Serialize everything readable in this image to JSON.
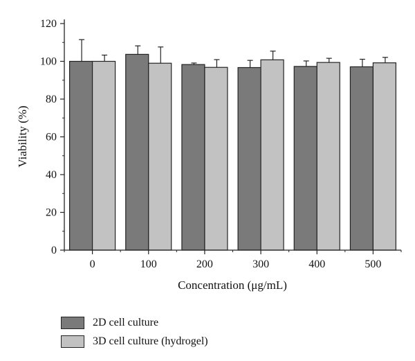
{
  "chart_data": {
    "type": "bar",
    "categories": [
      "0",
      "100",
      "200",
      "300",
      "400",
      "500"
    ],
    "series": [
      {
        "name": "2D cell culture",
        "values": [
          100.0,
          103.7,
          98.3,
          96.7,
          97.3,
          97.1
        ],
        "errors": [
          11.5,
          4.5,
          0.8,
          3.8,
          2.9,
          4.0
        ],
        "color": "#7a7a7a"
      },
      {
        "name": "3D cell culture (hydrogel)",
        "values": [
          100.0,
          99.0,
          96.8,
          100.8,
          99.4,
          99.2
        ],
        "errors": [
          3.3,
          8.6,
          4.1,
          4.6,
          2.2,
          2.9
        ],
        "color": "#c2c2c2"
      }
    ],
    "xlabel": "Concentration (μg/mL)",
    "ylabel": "Viability (%)",
    "ylim": [
      0,
      120
    ],
    "yticks": [
      0,
      20,
      40,
      60,
      80,
      100,
      120
    ],
    "grid": false,
    "legend_position": "bottom-left"
  }
}
